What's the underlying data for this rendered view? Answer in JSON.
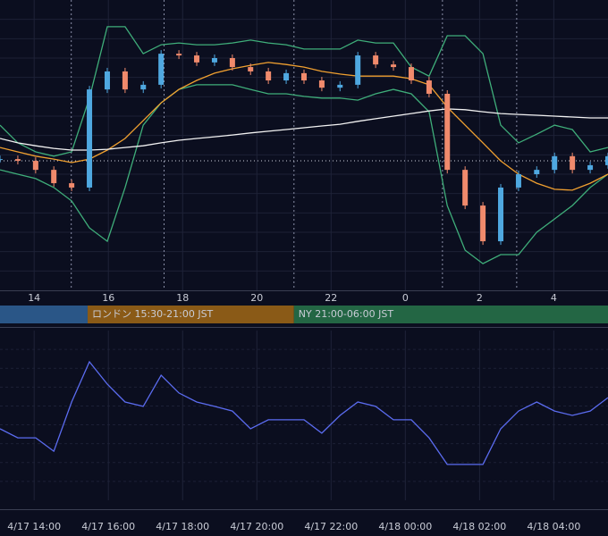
{
  "chart_data": [
    {
      "type": "candlestick",
      "xlim": [
        13.08,
        29.46
      ],
      "ylim": [
        0,
        100
      ],
      "xticks": [
        14,
        16,
        18,
        20,
        22,
        {
          "value": 24,
          "label": "0"
        },
        {
          "value": 26,
          "label": "2"
        },
        {
          "value": 28,
          "label": "4"
        }
      ],
      "grid": true,
      "x": [
        13.08,
        13.56,
        14.04,
        14.53,
        15.01,
        15.49,
        15.97,
        16.45,
        16.94,
        17.42,
        17.9,
        18.38,
        18.86,
        19.34,
        19.83,
        20.31,
        20.79,
        21.27,
        21.75,
        22.24,
        22.72,
        23.2,
        23.68,
        24.16,
        24.64,
        25.13,
        25.61,
        26.09,
        26.57,
        27.05,
        27.54,
        28.02,
        28.5,
        28.98,
        29.46
      ],
      "close": {
        "up_color": "#4fa8e0",
        "down_color": "#f08a6c",
        "values": [
          45.2,
          44.6,
          41.5,
          36.9,
          35.4,
          69.2,
          75.4,
          69.2,
          70.8,
          81.5,
          80.9,
          78.5,
          80,
          76.9,
          75.4,
          72.3,
          74.8,
          72.3,
          69.8,
          70.8,
          80.9,
          77.8,
          76.9,
          72.3,
          67.7,
          41.5,
          29.2,
          16.9,
          35.4,
          40,
          41.5,
          46.2,
          41.5,
          43.1,
          46.2
        ]
      },
      "series": [
        {
          "color": "#3fae7a",
          "values": [
            56.9,
            50.8,
            47.7,
            46.2,
            47.7,
            66.2,
            90.8,
            90.8,
            81.5,
            84.6,
            85.2,
            84.6,
            84.6,
            85.2,
            86.2,
            85.2,
            84.6,
            83.1,
            83.1,
            83.1,
            86.2,
            85.2,
            85.2,
            76.9,
            73.8,
            87.7,
            87.7,
            81.5,
            56.9,
            50.8,
            53.8,
            56.9,
            55.4,
            47.7,
            49.2
          ]
        },
        {
          "color": "#3fae7a",
          "values": [
            41.5,
            40,
            38.5,
            35.4,
            30.8,
            21.5,
            16.9,
            35.4,
            56.9,
            64.6,
            69.2,
            70.8,
            70.8,
            70.8,
            69.2,
            67.7,
            67.7,
            66.8,
            66.2,
            66.2,
            65.5,
            67.7,
            69.2,
            67.7,
            61.5,
            29.2,
            13.8,
            9.2,
            12.3,
            12.3,
            20,
            24.6,
            29.2,
            35.4,
            40
          ]
        },
        {
          "color": "#f0a030",
          "values": [
            49.2,
            47.7,
            46.2,
            45.2,
            44,
            45.2,
            48.3,
            52.3,
            58.5,
            64.6,
            69.2,
            72.3,
            74.8,
            76.3,
            77.5,
            78.5,
            77.8,
            76.9,
            75.4,
            74.5,
            73.8,
            73.8,
            73.8,
            72.9,
            70.8,
            63.1,
            56.9,
            50.8,
            44.6,
            40,
            36.9,
            34.8,
            34.5,
            36.9,
            40
          ]
        },
        {
          "color": "#f2f2f2",
          "values": [
            52.3,
            50.8,
            49.8,
            48.9,
            48.3,
            48.3,
            48.6,
            49.2,
            49.8,
            50.8,
            51.7,
            52.3,
            52.9,
            53.5,
            54.2,
            54.8,
            55.4,
            56,
            56.6,
            57.2,
            58.2,
            59.1,
            60,
            60.9,
            61.8,
            62.5,
            62.2,
            61.5,
            60.9,
            60.6,
            60.3,
            60,
            59.7,
            59.4,
            59.4
          ]
        }
      ],
      "price_line": 44.6,
      "session_lines": [
        15,
        17.5,
        21,
        25,
        27
      ],
      "sessions": [
        {
          "start": 13.08,
          "end": 15.44,
          "color": "#2a5687"
        },
        {
          "label": "ロンドン 15:30-21:00 JST",
          "start": 15.44,
          "end": 21,
          "color": "#8a5a17"
        },
        {
          "label": "NY 21:00-06:00 JST",
          "start": 21,
          "end": 29.46,
          "color": "#236644"
        }
      ]
    },
    {
      "type": "line",
      "xlim": [
        13.08,
        29.46
      ],
      "ylim": [
        0,
        100
      ],
      "xticks": [
        {
          "value": 14,
          "label": "4/17 14:00"
        },
        {
          "value": 16,
          "label": "4/17 16:00"
        },
        {
          "value": 18,
          "label": "4/17 18:00"
        },
        {
          "value": 20,
          "label": "4/17 20:00"
        },
        {
          "value": 22,
          "label": "4/17 22:00"
        },
        {
          "value": 24,
          "label": "4/18 00:00"
        },
        {
          "value": 26,
          "label": "4/18 02:00"
        },
        {
          "value": 28,
          "label": "4/18 04:00"
        }
      ],
      "grid": true,
      "x": [
        13.08,
        13.56,
        14.04,
        14.53,
        15.01,
        15.49,
        15.97,
        16.45,
        16.94,
        17.42,
        17.9,
        18.38,
        18.86,
        19.34,
        19.83,
        20.31,
        20.79,
        21.27,
        21.75,
        22.24,
        22.72,
        23.2,
        23.68,
        24.16,
        24.64,
        25.13,
        25.61,
        26.09,
        26.57,
        27.05,
        27.54,
        28.02,
        28.5,
        28.98,
        29.46
      ],
      "series": [
        {
          "color": "#5b6cf0",
          "values": [
            42.1,
            36.8,
            36.8,
            28.9,
            57.9,
            81.6,
            68.4,
            57.9,
            55.3,
            73.7,
            63.2,
            57.9,
            55.3,
            52.6,
            42.1,
            47.4,
            47.4,
            47.4,
            39.5,
            50,
            57.9,
            55.3,
            47.4,
            47.4,
            36.8,
            21.1,
            21.1,
            21.1,
            42.1,
            52.6,
            57.9,
            52.6,
            50,
            52.6,
            60.5
          ]
        }
      ]
    }
  ]
}
